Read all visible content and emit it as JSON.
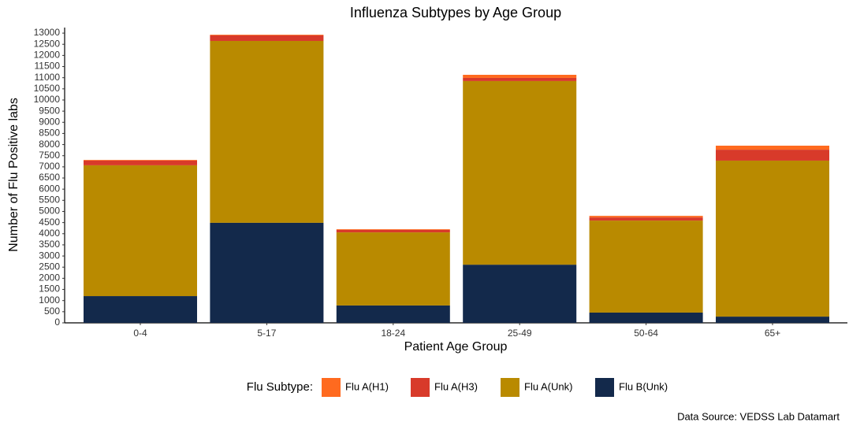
{
  "chart_data": {
    "type": "stacked_bar",
    "title": "Influenza Subtypes by Age Group",
    "x_label": "Patient Age Group",
    "y_label": "Number of Flu Positive labs",
    "categories": [
      "0-4",
      "5-17",
      "18-24",
      "25-49",
      "50-64",
      "65+"
    ],
    "series": [
      {
        "name": "Flu A(H1)",
        "color": "#ff6a1f",
        "values": [
          30,
          30,
          30,
          140,
          70,
          180
        ]
      },
      {
        "name": "Flu A(H3)",
        "color": "#d83a2a",
        "values": [
          210,
          250,
          110,
          140,
          140,
          490
        ]
      },
      {
        "name": "Flu A(Unk)",
        "color": "#b98a00",
        "values": [
          5870,
          8160,
          3280,
          8240,
          4130,
          7000
        ]
      },
      {
        "name": "Flu B(Unk)",
        "color": "#13294b",
        "values": [
          1200,
          4490,
          780,
          2610,
          460,
          280
        ]
      }
    ],
    "ylim": [
      0,
      13250
    ],
    "yticks": [
      0,
      500,
      1000,
      1500,
      2000,
      2500,
      3000,
      3500,
      4000,
      4500,
      5000,
      5500,
      6000,
      6500,
      7000,
      7500,
      8000,
      8500,
      9000,
      9500,
      10000,
      10500,
      11000,
      11500,
      12000,
      12500,
      13000
    ],
    "legend_title": "Flu Subtype:",
    "legend_position": "bottom",
    "caption": "Data Source: VEDSS Lab Datamart",
    "grid": false
  }
}
